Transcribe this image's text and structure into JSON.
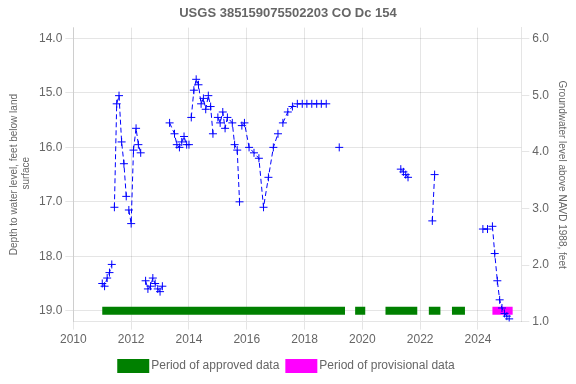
{
  "chart_data": {
    "type": "line",
    "title": "USGS 385159075502203 CO Dc 154",
    "y_label": "Depth to water level, feet below land\n surface",
    "y2_label": "Groundwater level above NAVD 1988, feet",
    "xlim": [
      2010,
      2025.5
    ],
    "ylim": [
      19.2,
      13.8
    ],
    "y2lim": [
      1.0,
      6.2
    ],
    "xticks": [
      2010,
      2012,
      2014,
      2016,
      2018,
      2020,
      2022,
      2024
    ],
    "yticks": [
      {
        "value": 14.0,
        "label": "14.0"
      },
      {
        "value": 15.0,
        "label": "15.0"
      },
      {
        "value": 16.0,
        "label": "16.0"
      },
      {
        "value": 17.0,
        "label": "17.0"
      },
      {
        "value": 18.0,
        "label": "18.0"
      },
      {
        "value": 19.0,
        "label": "19.0"
      }
    ],
    "y2ticks": [
      {
        "value": 1.0,
        "label": "1.0"
      },
      {
        "value": 2.0,
        "label": "2.0"
      },
      {
        "value": 3.0,
        "label": "3.0"
      },
      {
        "value": 4.0,
        "label": "4.0"
      },
      {
        "value": 5.0,
        "label": "5.0"
      },
      {
        "value": 6.0,
        "label": "6.0"
      }
    ],
    "grid": true,
    "legend": "bottom",
    "series": [
      {
        "type": "line",
        "color": "#0000ff",
        "marker": "+",
        "line_style": "dashed",
        "x": [
          2011.0,
          2011.08,
          2011.17,
          2011.25,
          2011.33,
          null,
          2011.42,
          2011.5,
          2011.58,
          2011.67,
          2011.75,
          2011.83,
          null,
          2011.92,
          2012.0,
          2012.08,
          2012.17,
          2012.25,
          2012.33,
          null,
          2012.5,
          2012.58,
          2012.67,
          2012.75,
          2012.83,
          2012.92,
          2013.0,
          2013.08,
          null,
          2013.33,
          2013.5,
          2013.58,
          2013.67,
          2013.75,
          2013.83,
          2013.92,
          2014.0,
          null,
          2014.08,
          2014.17,
          2014.25,
          2014.33,
          2014.42,
          2014.5,
          2014.58,
          2014.67,
          2014.75,
          2014.83,
          null,
          2015.0,
          2015.08,
          2015.17,
          2015.25,
          2015.33,
          2015.5,
          2015.58,
          2015.67,
          2015.75,
          null,
          2015.83,
          2015.92,
          2016.08,
          2016.25,
          2016.42,
          2016.58,
          2016.75,
          2016.92,
          2017.08,
          null,
          2017.25,
          2017.42,
          2017.58,
          2017.75,
          2017.92,
          2018.08,
          2018.25,
          2018.42,
          2018.58,
          2018.75,
          null,
          2019.2,
          null,
          2021.33,
          2021.42,
          2021.5,
          2021.58,
          null,
          2022.42,
          2022.5,
          null,
          2024.17,
          2024.33,
          null,
          2024.5,
          2024.58,
          2024.67,
          2024.75,
          2024.83,
          2024.92,
          2025.0,
          2025.08
        ],
        "values": [
          18.5,
          18.55,
          18.4,
          18.3,
          18.15,
          null,
          17.1,
          15.2,
          15.05,
          15.9,
          16.3,
          16.9,
          null,
          17.15,
          17.4,
          16.05,
          15.65,
          15.95,
          16.1,
          null,
          18.45,
          18.6,
          18.55,
          18.4,
          18.5,
          18.6,
          18.65,
          18.55,
          null,
          15.55,
          15.75,
          15.95,
          16.0,
          15.9,
          15.8,
          15.95,
          15.95,
          null,
          15.45,
          14.95,
          14.75,
          14.85,
          15.2,
          15.1,
          15.3,
          15.05,
          15.25,
          15.75,
          null,
          15.45,
          15.55,
          15.35,
          15.65,
          15.45,
          15.55,
          15.95,
          16.05,
          17.0,
          null,
          15.6,
          15.55,
          16.0,
          16.1,
          16.2,
          17.1,
          16.55,
          16.0,
          15.75,
          null,
          15.55,
          15.35,
          15.25,
          15.2,
          15.2,
          15.2,
          15.2,
          15.2,
          15.2,
          15.2,
          null,
          16.0,
          null,
          16.4,
          16.45,
          16.5,
          16.55,
          null,
          17.35,
          16.5,
          null,
          17.5,
          17.5,
          null,
          17.45,
          17.95,
          18.45,
          18.8,
          18.95,
          19.05,
          19.1,
          19.15
        ]
      },
      {
        "type": "interval",
        "name": "Period of approved data",
        "color": "#008000",
        "y": 19.0,
        "intervals": [
          [
            2011.0,
            2019.4
          ],
          [
            2019.75,
            2020.1
          ],
          [
            2020.8,
            2021.9
          ],
          [
            2022.3,
            2022.7
          ],
          [
            2023.1,
            2023.55
          ]
        ]
      },
      {
        "type": "interval",
        "name": "Period of provisional data",
        "color": "#ff00ff",
        "y": 19.0,
        "intervals": [
          [
            2024.5,
            2025.2
          ]
        ]
      }
    ]
  }
}
